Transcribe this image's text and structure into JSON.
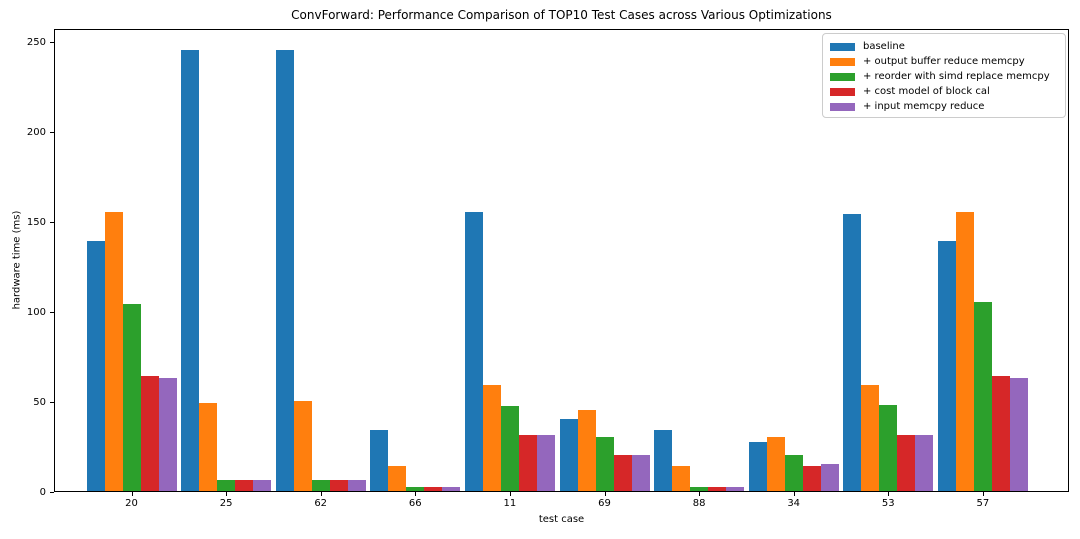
{
  "chart_data": {
    "type": "bar",
    "title": "ConvForward: Performance Comparison of TOP10 Test Cases across Various Optimizations",
    "xlabel": "test case",
    "ylabel": "hardware time (ms)",
    "ylim": [
      0,
      257
    ],
    "yticks": [
      0,
      50,
      100,
      150,
      200,
      250
    ],
    "categories": [
      "20",
      "25",
      "62",
      "66",
      "11",
      "69",
      "88",
      "34",
      "53",
      "57"
    ],
    "series": [
      {
        "name": "baseline",
        "color": "#1f77b4",
        "values": [
          139,
          245,
          245,
          34,
          155,
          40,
          34,
          27,
          154,
          139
        ]
      },
      {
        "name": "+ output buffer reduce memcpy",
        "color": "#ff7f0e",
        "values": [
          155,
          49,
          50,
          14,
          59,
          45,
          14,
          30,
          59,
          155
        ]
      },
      {
        "name": "+ reorder with simd replace memcpy",
        "color": "#2ca02c",
        "values": [
          104,
          6,
          6,
          2,
          47,
          30,
          2,
          20,
          48,
          105
        ]
      },
      {
        "name": "+ cost model of block cal",
        "color": "#d62728",
        "values": [
          64,
          6,
          6,
          2,
          31,
          20,
          2,
          14,
          31,
          64
        ]
      },
      {
        "name": "+ input memcpy reduce",
        "color": "#9467bd",
        "values": [
          63,
          6,
          6,
          2,
          31,
          20,
          2,
          15,
          31,
          63
        ]
      }
    ],
    "legend": {
      "position": "upper right",
      "border_color": "#cccccc"
    },
    "grid": false,
    "background": "#ffffff"
  }
}
